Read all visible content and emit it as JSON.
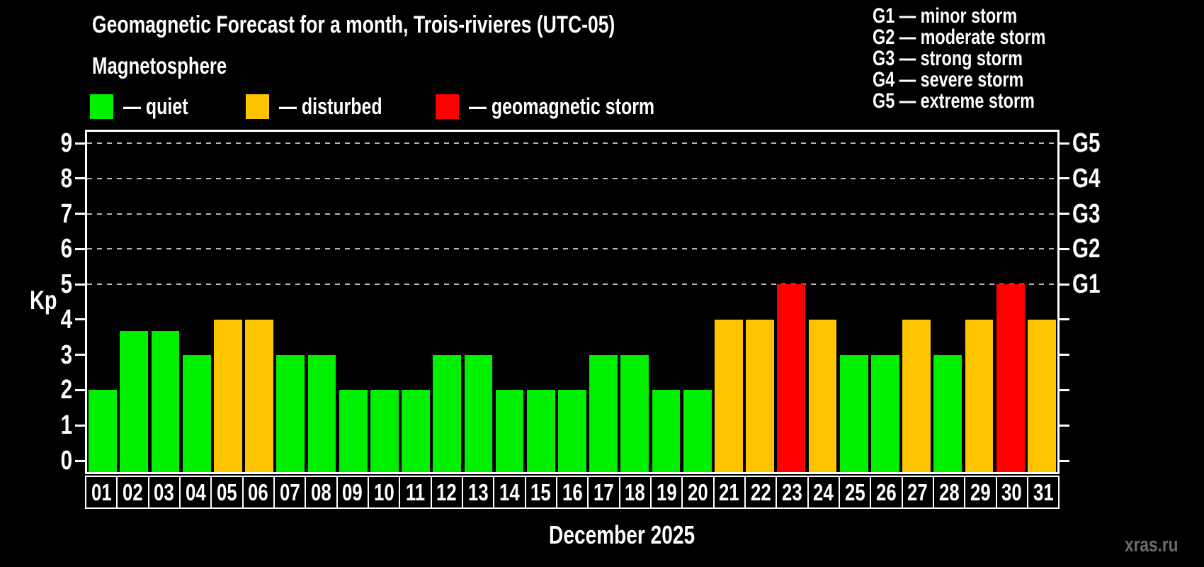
{
  "title": "Geomagnetic Forecast for a month, Trois-rivieres (UTC-05)",
  "subtitle": "Magnetosphere",
  "legend": {
    "quiet": "— quiet",
    "disturbed": "— disturbed",
    "storm": "— geomagnetic storm"
  },
  "storm_scale": [
    "G1 — minor storm",
    "G2 — moderate storm",
    "G3 — strong storm",
    "G4 — severe storm",
    "G5 — extreme storm"
  ],
  "axis": {
    "kp_label": "Kp",
    "month_label": "December 2025"
  },
  "watermark": "xras.ru",
  "colors": {
    "quiet": "#00f000",
    "disturbed": "#ffc400",
    "storm": "#ff0000",
    "grid": "#b4b4b4",
    "background": "#000000",
    "text": "#ffffff",
    "watermark_text": "#6c6c6c"
  },
  "chart_data": {
    "type": "bar",
    "title": "Geomagnetic Forecast for a month, Trois-rivieres (UTC-05)",
    "xlabel": "December 2025",
    "ylabel": "Kp",
    "ylim": [
      0,
      9
    ],
    "yticks": [
      0,
      1,
      2,
      3,
      4,
      5,
      6,
      7,
      8,
      9
    ],
    "gridlines_at": [
      5,
      6,
      7,
      8,
      9
    ],
    "grid": "dashed-horizontal",
    "legend_position": "top",
    "right_axis_labels": [
      {
        "kp": 5,
        "label": "G1"
      },
      {
        "kp": 6,
        "label": "G2"
      },
      {
        "kp": 7,
        "label": "G3"
      },
      {
        "kp": 8,
        "label": "G4"
      },
      {
        "kp": 9,
        "label": "G5"
      }
    ],
    "categories": [
      "01",
      "02",
      "03",
      "04",
      "05",
      "06",
      "07",
      "08",
      "09",
      "10",
      "11",
      "12",
      "13",
      "14",
      "15",
      "16",
      "17",
      "18",
      "19",
      "20",
      "21",
      "22",
      "23",
      "24",
      "25",
      "26",
      "27",
      "28",
      "29",
      "30",
      "31"
    ],
    "values": [
      2,
      3.67,
      3.67,
      3,
      4,
      4,
      3,
      3,
      2,
      2,
      2,
      3,
      3,
      2,
      2,
      2,
      3,
      3,
      2,
      2,
      4,
      4,
      5,
      4,
      3,
      3,
      4,
      3,
      4,
      5,
      4
    ],
    "status": [
      "quiet",
      "quiet",
      "quiet",
      "quiet",
      "disturbed",
      "disturbed",
      "quiet",
      "quiet",
      "quiet",
      "quiet",
      "quiet",
      "quiet",
      "quiet",
      "quiet",
      "quiet",
      "quiet",
      "quiet",
      "quiet",
      "quiet",
      "quiet",
      "disturbed",
      "disturbed",
      "storm",
      "disturbed",
      "quiet",
      "quiet",
      "disturbed",
      "quiet",
      "disturbed",
      "storm",
      "disturbed"
    ]
  }
}
